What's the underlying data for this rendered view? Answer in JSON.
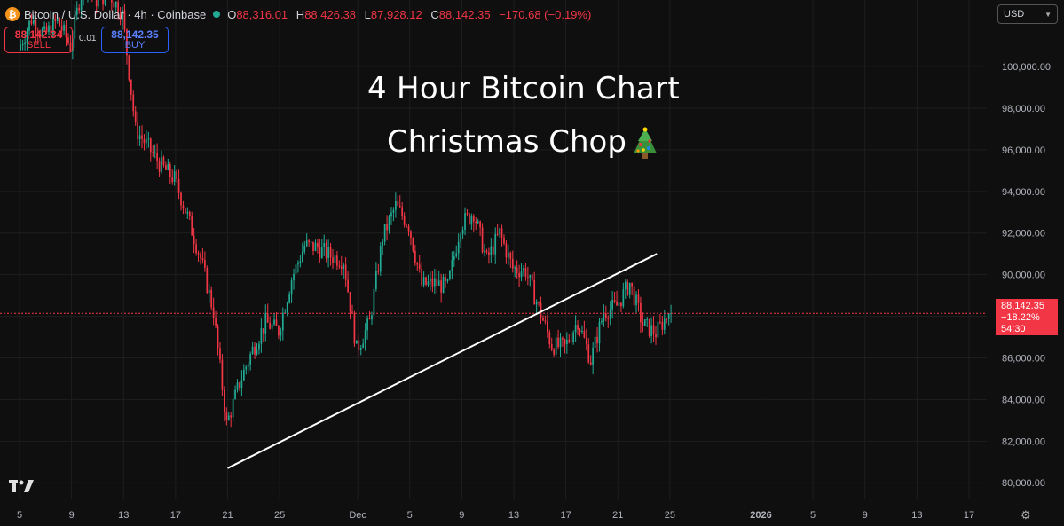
{
  "header": {
    "symbol": "Bitcoin / U.S. Dollar · 4h · Coinbase",
    "open_label": "O",
    "open": "88,316.01",
    "high_label": "H",
    "high": "88,426.38",
    "low_label": "L",
    "low": "87,928.12",
    "close_label": "C",
    "close": "88,142.35",
    "change": "−170.68 (−0.19%)",
    "logo_glyph": "₿"
  },
  "trade": {
    "sell_price": "88,142.34",
    "sell_label": "SELL",
    "spread": "0.01",
    "buy_price": "88,142.35",
    "buy_label": "BUY"
  },
  "currency": "USD",
  "overlay": {
    "line1": "4 Hour Bitcoin Chart",
    "line2": "Christmas Chop"
  },
  "price_tag": {
    "price": "88,142.35",
    "change": "−18.22%",
    "countdown": "54:30"
  },
  "colors": {
    "up": "#22ab94",
    "down": "#f23645",
    "background": "#0f0f0f",
    "grid": "#1e1e1e",
    "trendline": "#ffffff"
  },
  "chart_data": {
    "type": "line",
    "series_type": "candlestick",
    "timeframe": "4h",
    "ylim": [
      79200,
      103200
    ],
    "y_ticks": [
      80000,
      82000,
      84000,
      86000,
      88000,
      90000,
      92000,
      94000,
      96000,
      98000,
      100000
    ],
    "y_tick_labels": [
      "80,000.00",
      "82,000.00",
      "84,000.00",
      "86,000.00",
      "88,000.00",
      "90,000.00",
      "92,000.00",
      "94,000.00",
      "96,000.00",
      "98,000.00",
      "100,000.00"
    ],
    "xlim": [
      "2025-11-05",
      "2026-01-17"
    ],
    "x_ticks": [
      {
        "date": "2025-11-05",
        "label": "5"
      },
      {
        "date": "2025-11-09",
        "label": "9"
      },
      {
        "date": "2025-11-13",
        "label": "13"
      },
      {
        "date": "2025-11-17",
        "label": "17"
      },
      {
        "date": "2025-11-21",
        "label": "21"
      },
      {
        "date": "2025-11-25",
        "label": "25"
      },
      {
        "date": "2025-12-01",
        "label": "Dec"
      },
      {
        "date": "2025-12-05",
        "label": "5"
      },
      {
        "date": "2025-12-09",
        "label": "9"
      },
      {
        "date": "2025-12-13",
        "label": "13"
      },
      {
        "date": "2025-12-17",
        "label": "17"
      },
      {
        "date": "2025-12-21",
        "label": "21"
      },
      {
        "date": "2025-12-25",
        "label": "25"
      },
      {
        "date": "2026-01-01",
        "label": "2026"
      },
      {
        "date": "2026-01-05",
        "label": "5"
      },
      {
        "date": "2026-01-09",
        "label": "9"
      },
      {
        "date": "2026-01-13",
        "label": "13"
      },
      {
        "date": "2026-01-17",
        "label": "17"
      }
    ],
    "current_price": 88142.35,
    "close_path": [
      {
        "date": "2025-11-05",
        "price": 100800
      },
      {
        "date": "2025-11-06",
        "price": 102300
      },
      {
        "date": "2025-11-07",
        "price": 101500
      },
      {
        "date": "2025-11-08",
        "price": 102200
      },
      {
        "date": "2025-11-09",
        "price": 101000
      },
      {
        "date": "2025-11-10",
        "price": 104200
      },
      {
        "date": "2025-11-11",
        "price": 103200
      },
      {
        "date": "2025-11-12",
        "price": 103500
      },
      {
        "date": "2025-11-13",
        "price": 102500
      },
      {
        "date": "2025-11-14",
        "price": 97000
      },
      {
        "date": "2025-11-15",
        "price": 96100
      },
      {
        "date": "2025-11-16",
        "price": 95200
      },
      {
        "date": "2025-11-17",
        "price": 94600
      },
      {
        "date": "2025-11-18",
        "price": 92800
      },
      {
        "date": "2025-11-19",
        "price": 90800
      },
      {
        "date": "2025-11-20",
        "price": 88200
      },
      {
        "date": "2025-11-21",
        "price": 82800
      },
      {
        "date": "2025-11-22",
        "price": 84800
      },
      {
        "date": "2025-11-23",
        "price": 86400
      },
      {
        "date": "2025-11-24",
        "price": 87700
      },
      {
        "date": "2025-11-25",
        "price": 87300
      },
      {
        "date": "2025-11-26",
        "price": 89800
      },
      {
        "date": "2025-11-27",
        "price": 91400
      },
      {
        "date": "2025-11-28",
        "price": 91300
      },
      {
        "date": "2025-11-29",
        "price": 90900
      },
      {
        "date": "2025-11-30",
        "price": 90700
      },
      {
        "date": "2025-12-01",
        "price": 86400
      },
      {
        "date": "2025-12-02",
        "price": 87700
      },
      {
        "date": "2025-12-03",
        "price": 91800
      },
      {
        "date": "2025-12-04",
        "price": 93300
      },
      {
        "date": "2025-12-05",
        "price": 92400
      },
      {
        "date": "2025-12-06",
        "price": 89500
      },
      {
        "date": "2025-12-07",
        "price": 89600
      },
      {
        "date": "2025-12-08",
        "price": 89400
      },
      {
        "date": "2025-12-09",
        "price": 92400
      },
      {
        "date": "2025-12-10",
        "price": 93000
      },
      {
        "date": "2025-12-11",
        "price": 90700
      },
      {
        "date": "2025-12-12",
        "price": 92000
      },
      {
        "date": "2025-12-13",
        "price": 90300
      },
      {
        "date": "2025-12-14",
        "price": 90200
      },
      {
        "date": "2025-12-15",
        "price": 88400
      },
      {
        "date": "2025-12-16",
        "price": 86600
      },
      {
        "date": "2025-12-17",
        "price": 86500
      },
      {
        "date": "2025-12-18",
        "price": 87800
      },
      {
        "date": "2025-12-19",
        "price": 85900
      },
      {
        "date": "2025-12-20",
        "price": 88200
      },
      {
        "date": "2025-12-21",
        "price": 88500
      },
      {
        "date": "2025-12-22",
        "price": 89600
      },
      {
        "date": "2025-12-23",
        "price": 87600
      },
      {
        "date": "2025-12-24",
        "price": 87200
      },
      {
        "date": "2025-12-25",
        "price": 88142.35
      }
    ],
    "trendline": {
      "start": {
        "date": "2025-11-21",
        "price": 80700
      },
      "end": {
        "date": "2025-12-24",
        "price": 91000
      }
    }
  }
}
